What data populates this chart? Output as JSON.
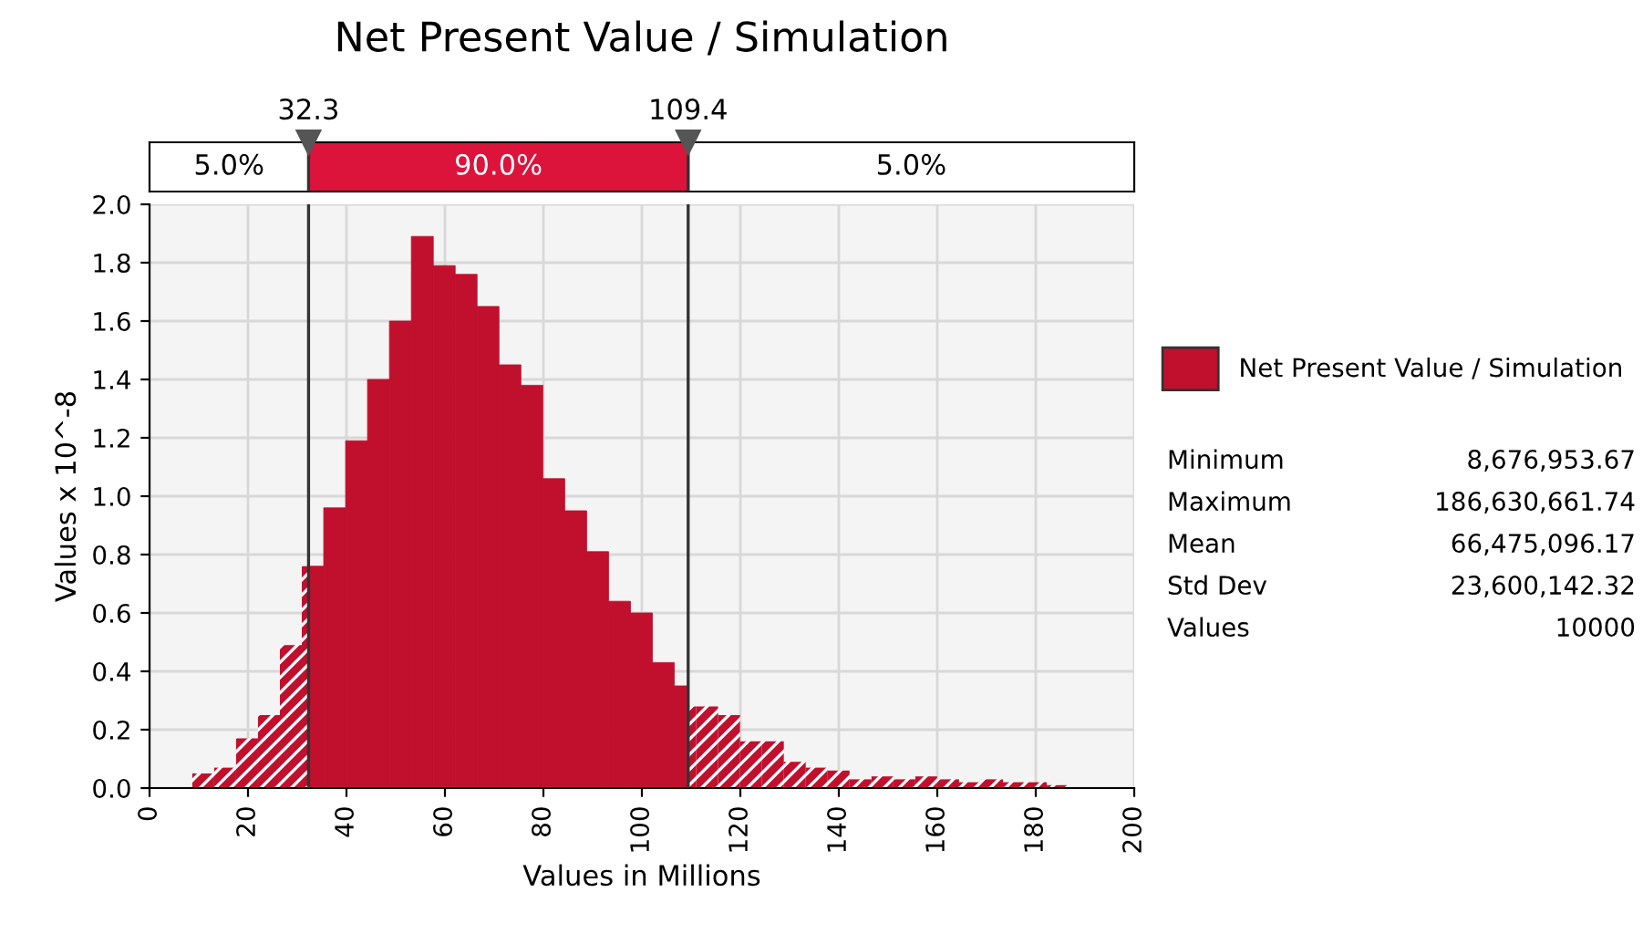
{
  "chart_data": {
    "type": "histogram",
    "title": "Net Present Value / Simulation",
    "xlabel": "Values in Millions",
    "ylabel": "Values x 10^-8",
    "bins": [
      8.68,
      13.13,
      17.58,
      22.03,
      26.48,
      30.93,
      32.3,
      35.38,
      39.83,
      44.28,
      48.73,
      53.18,
      57.63,
      62.08,
      66.53,
      70.98,
      75.43,
      79.88,
      84.33,
      88.78,
      93.23,
      97.68,
      102.13,
      106.58,
      109.4,
      111.03,
      115.48,
      119.93,
      124.38,
      128.83,
      133.28,
      137.73,
      142.18,
      146.63,
      151.08,
      155.53,
      159.98,
      164.43,
      168.88,
      173.33,
      177.78,
      182.23,
      186.68
    ],
    "series": [
      {
        "name": "Net Present Value / Simulation",
        "color": "#c0102e",
        "values": [
          0.05,
          0.07,
          0.17,
          0.25,
          0.49,
          0.76,
          0.76,
          0.96,
          1.19,
          1.4,
          1.6,
          1.89,
          1.79,
          1.76,
          1.65,
          1.45,
          1.38,
          1.06,
          0.95,
          0.81,
          0.64,
          0.6,
          0.43,
          0.35,
          0.28,
          0.28,
          0.25,
          0.16,
          0.16,
          0.09,
          0.07,
          0.06,
          0.03,
          0.04,
          0.03,
          0.04,
          0.03,
          0.02,
          0.03,
          0.02,
          0.02,
          0.01
        ]
      }
    ],
    "xlim": [
      0,
      200
    ],
    "xticks": [
      0,
      20,
      40,
      60,
      80,
      100,
      120,
      140,
      160,
      180,
      200
    ],
    "ylim": [
      0,
      2.0
    ],
    "yticks": [
      {
        "value": 0,
        "label": "0.0"
      },
      {
        "value": 0.2,
        "label": "0.2"
      },
      {
        "value": 0.4,
        "label": "0.4"
      },
      {
        "value": 0.6,
        "label": "0.6"
      },
      {
        "value": 0.8,
        "label": "0.8"
      },
      {
        "value": 1.0,
        "label": "1.0"
      },
      {
        "value": 1.2,
        "label": "1.2"
      },
      {
        "value": 1.4,
        "label": "1.4"
      },
      {
        "value": 1.6,
        "label": "1.6"
      },
      {
        "value": 1.8,
        "label": "1.8"
      },
      {
        "value": 2.0,
        "label": "2.0"
      }
    ],
    "ref_lines": [
      {
        "axis": "x",
        "value": 32.3,
        "label": "32.3"
      },
      {
        "axis": "x",
        "value": 109.4,
        "label": "109.4"
      }
    ],
    "annotations": [
      "5.0%",
      "90.0%",
      "5.0%",
      "Minimum",
      "8,676,953.67",
      "Maximum",
      "186,630,661.74",
      "Mean",
      "66,475,096.17",
      "Std Dev",
      "23,600,142.32",
      "Values",
      "10000"
    ],
    "grid": true,
    "legend": "right"
  }
}
